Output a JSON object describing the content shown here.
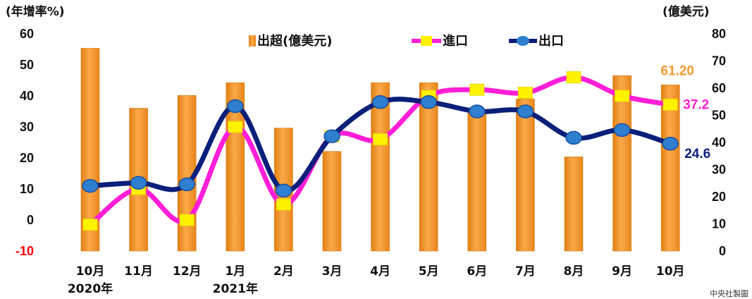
{
  "chart_data": {
    "type": "bar",
    "categories": [
      "10月",
      "11月",
      "12月",
      "1月",
      "2月",
      "3月",
      "4月",
      "5月",
      "6月",
      "7月",
      "8月",
      "9月",
      "10月"
    ],
    "year_labels": [
      {
        "index": 0,
        "text": "2020年"
      },
      {
        "index": 3,
        "text": "2021年"
      }
    ],
    "left_axis": {
      "unit_label": "(年增率%)",
      "range": [
        -10,
        60
      ],
      "ticks": [
        60,
        50,
        40,
        30,
        20,
        10,
        0,
        -10
      ]
    },
    "right_axis": {
      "unit_label": "(億美元)",
      "range": [
        0,
        80
      ],
      "ticks": [
        80,
        70,
        60,
        50,
        40,
        30,
        20,
        10,
        0
      ]
    },
    "series": [
      {
        "name": "出超(億美元)",
        "kind": "bar",
        "axis": "right",
        "color": "#F39A2E",
        "values": [
          74.7,
          52.6,
          57.3,
          62,
          45.3,
          36.7,
          62,
          62,
          51.3,
          56,
          34.7,
          64.6,
          61.2
        ]
      },
      {
        "name": "進口",
        "kind": "line",
        "axis": "left",
        "color": "#FF1ED8",
        "marker_color": "#FFF200",
        "values": [
          -1.5,
          10,
          0,
          30,
          5,
          27,
          26,
          40,
          42,
          41,
          46,
          40,
          37.2
        ]
      },
      {
        "name": "出口",
        "kind": "line",
        "axis": "left",
        "color": "#0A1F7A",
        "marker_color": "#2E7FD0",
        "values": [
          11,
          12,
          11.5,
          36.7,
          9.5,
          27,
          38,
          38,
          35,
          35,
          26.5,
          29,
          24.6
        ]
      }
    ],
    "annotations": [
      {
        "series": "出超(億美元)",
        "index": 12,
        "text": "61.20",
        "color": "#F39A2E"
      },
      {
        "series": "進口",
        "index": 12,
        "text": "37.2",
        "color": "#FF1ED8"
      },
      {
        "series": "出口",
        "index": 12,
        "text": "24.6",
        "color": "#0A1F7A"
      }
    ],
    "negative_tick_color": "#FF0000",
    "grid": false,
    "legend_position": "top"
  },
  "credit": "中央社製圖"
}
